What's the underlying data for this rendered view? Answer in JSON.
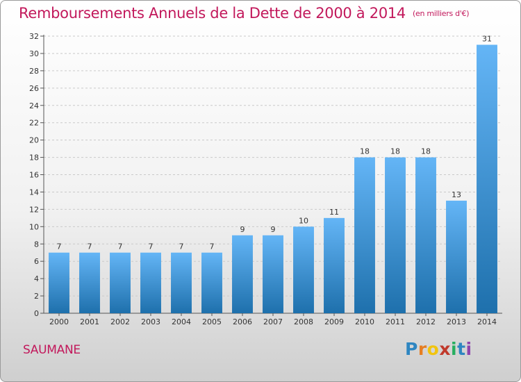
{
  "title": "Remboursements Annuels de la Dette de 2000 à 2014",
  "subtitle": "(en milliers d'€)",
  "commune": "SAUMANE",
  "logo": {
    "letters": [
      "P",
      "r",
      "o",
      "x",
      "i",
      "t",
      "i"
    ],
    "colors": [
      "#2e86c1",
      "#e67e22",
      "#f1c40f",
      "#c0392b",
      "#27ae60",
      "#2e86c1",
      "#8e44ad"
    ]
  },
  "colors": {
    "title": "#c2185b",
    "bar_top": "#64b5f6",
    "bar_bottom": "#1e70ac",
    "axis": "#555555",
    "grid": "#c9c9c9"
  },
  "chart_data": {
    "type": "bar",
    "categories": [
      "2000",
      "2001",
      "2002",
      "2003",
      "2004",
      "2005",
      "2006",
      "2007",
      "2008",
      "2009",
      "2010",
      "2011",
      "2012",
      "2013",
      "2014"
    ],
    "values": [
      7,
      7,
      7,
      7,
      7,
      7,
      9,
      9,
      10,
      11,
      18,
      18,
      18,
      13,
      31
    ],
    "data_labels": [
      "7",
      "7",
      "7",
      "7",
      "7",
      "7",
      "9",
      "9",
      "10",
      "11",
      "18",
      "18",
      "18",
      "13",
      "31"
    ],
    "ylim": [
      0,
      32
    ],
    "yticks": [
      0,
      2,
      4,
      6,
      8,
      10,
      12,
      14,
      16,
      18,
      20,
      22,
      24,
      26,
      28,
      30,
      32
    ],
    "xlabel": "",
    "ylabel": "",
    "grid": true
  }
}
